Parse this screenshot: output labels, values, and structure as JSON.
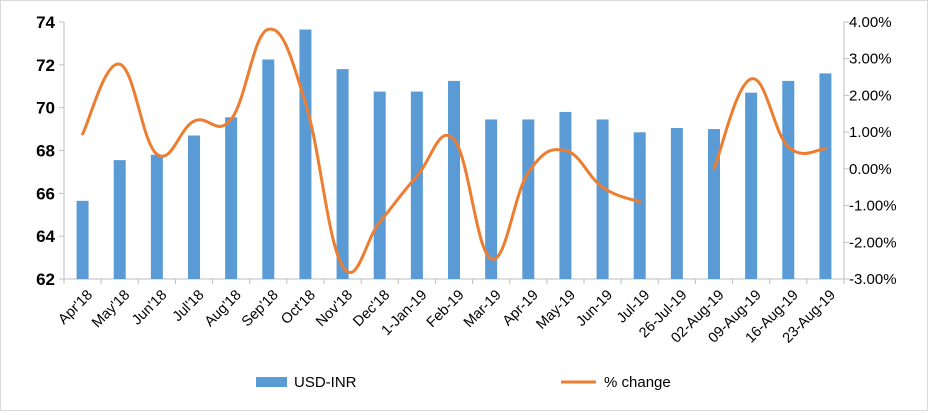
{
  "chart_data": {
    "type": "bar+line",
    "categories": [
      "Apr'18",
      "May'18",
      "Jun'18",
      "Jul'18",
      "Aug'18",
      "Sep'18",
      "Oct'18",
      "Nov'18",
      "Dec'18",
      "1-Jan-19",
      "Feb-19",
      "Mar-19",
      "Apr-19",
      "May-19",
      "Jun-19",
      "Jul-19",
      "26-Jul-19",
      "02-Aug-19",
      "09-Aug-19",
      "16-Aug-19",
      "23-Aug-19"
    ],
    "series": [
      {
        "name": "USD-INR",
        "type": "bar",
        "axis": "left",
        "color": "#5b9bd5",
        "values": [
          65.65,
          67.55,
          67.8,
          68.7,
          69.55,
          72.25,
          73.65,
          71.8,
          70.75,
          70.75,
          71.25,
          69.45,
          69.45,
          69.8,
          69.45,
          68.85,
          69.05,
          69.0,
          70.7,
          71.25,
          71.6
        ]
      },
      {
        "name": "% change",
        "type": "line",
        "axis": "right",
        "color": "#ed7d31",
        "smooth": true,
        "segments": [
          {
            "start_index": 0,
            "values": [
              0.95,
              2.85,
              0.4,
              1.3,
              1.35,
              3.8,
              1.8,
              -2.65,
              -1.45,
              -0.2,
              0.8,
              -2.45,
              -0.1,
              0.5,
              -0.5,
              -0.9
            ]
          },
          {
            "start_index": 17,
            "values": [
              0.0,
              2.45,
              0.6,
              0.55
            ]
          }
        ]
      }
    ],
    "y_left": {
      "min": 62,
      "max": 74,
      "ticks": [
        "62",
        "64",
        "66",
        "68",
        "70",
        "72",
        "74"
      ]
    },
    "y_right": {
      "min": -3.0,
      "max": 4.0,
      "ticks": [
        "-3.00%",
        "-2.00%",
        "-1.00%",
        "0.00%",
        "1.00%",
        "2.00%",
        "3.00%",
        "4.00%"
      ]
    },
    "grid": false,
    "legend_position": "bottom"
  }
}
